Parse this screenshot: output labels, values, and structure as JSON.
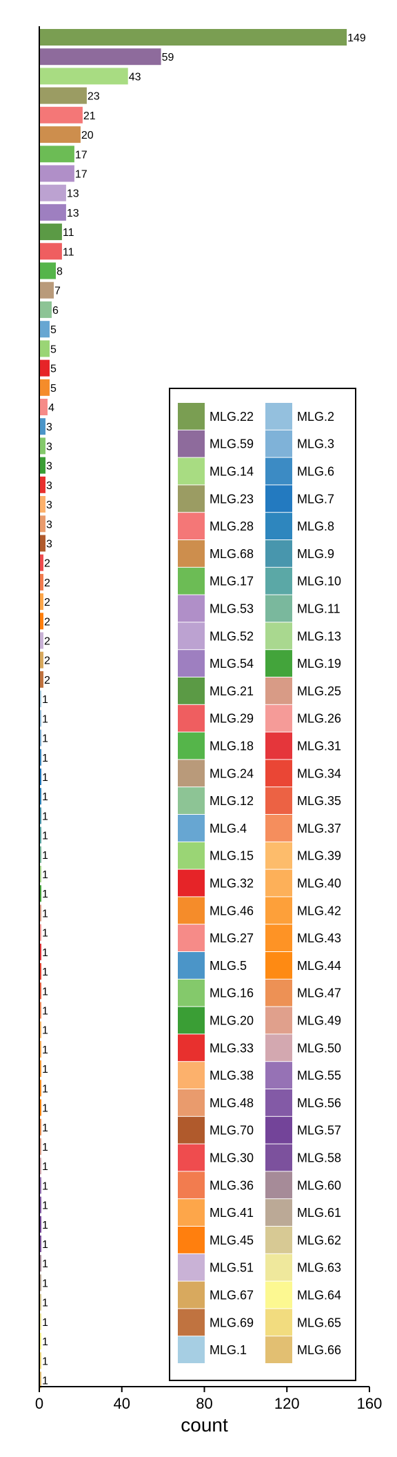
{
  "chart_data": {
    "type": "bar",
    "orientation": "horizontal",
    "title": "",
    "xlabel": "count",
    "ylabel": "",
    "xlim": [
      0,
      160
    ],
    "xticks": [
      0,
      40,
      80,
      120,
      160
    ],
    "grid": false,
    "legend_placement": "bottom-right",
    "categories": [
      "MLG.22",
      "MLG.59",
      "MLG.14",
      "MLG.23",
      "MLG.28",
      "MLG.68",
      "MLG.17",
      "MLG.53",
      "MLG.52",
      "MLG.54",
      "MLG.21",
      "MLG.29",
      "MLG.18",
      "MLG.24",
      "MLG.12",
      "MLG.4",
      "MLG.15",
      "MLG.32",
      "MLG.46",
      "MLG.27",
      "MLG.5",
      "MLG.16",
      "MLG.20",
      "MLG.33",
      "MLG.38",
      "MLG.48",
      "MLG.70",
      "MLG.30",
      "MLG.36",
      "MLG.41",
      "MLG.45",
      "MLG.51",
      "MLG.67",
      "MLG.69",
      "MLG.1",
      "MLG.2",
      "MLG.3",
      "MLG.6",
      "MLG.7",
      "MLG.8",
      "MLG.9",
      "MLG.10",
      "MLG.11",
      "MLG.13",
      "MLG.19",
      "MLG.25",
      "MLG.26",
      "MLG.31",
      "MLG.34",
      "MLG.35",
      "MLG.37",
      "MLG.39",
      "MLG.40",
      "MLG.42",
      "MLG.43",
      "MLG.44",
      "MLG.47",
      "MLG.49",
      "MLG.50",
      "MLG.55",
      "MLG.56",
      "MLG.57",
      "MLG.58",
      "MLG.60",
      "MLG.61",
      "MLG.62",
      "MLG.63",
      "MLG.64",
      "MLG.65",
      "MLG.66"
    ],
    "values": [
      149,
      59,
      43,
      23,
      21,
      20,
      17,
      17,
      13,
      13,
      11,
      11,
      8,
      7,
      6,
      5,
      5,
      5,
      5,
      4,
      3,
      3,
      3,
      3,
      3,
      3,
      3,
      2,
      2,
      2,
      2,
      2,
      2,
      2,
      1,
      1,
      1,
      1,
      1,
      1,
      1,
      1,
      1,
      1,
      1,
      1,
      1,
      1,
      1,
      1,
      1,
      1,
      1,
      1,
      1,
      1,
      1,
      1,
      1,
      1,
      1,
      1,
      1,
      1,
      1,
      1,
      1,
      1,
      1,
      1
    ],
    "value_labels": [
      "149",
      "59",
      "43",
      "23",
      "21",
      "20",
      "17",
      "17",
      "13",
      "13",
      "11",
      "11",
      "8",
      "7",
      "6",
      "5",
      "5",
      "5",
      "5",
      "4",
      "3",
      "3",
      "3",
      "3",
      "3",
      "3",
      "3",
      "2",
      "2",
      "2",
      "2",
      "2",
      "2",
      "2",
      "1",
      "1",
      "1",
      "1",
      "1",
      "1",
      "1",
      "1",
      "1",
      "1",
      "1",
      "1",
      "1",
      "1",
      "1",
      "1",
      "1",
      "1",
      "1",
      "1",
      "1",
      "1",
      "1",
      "1",
      "1",
      "1",
      "1",
      "1",
      "1",
      "1",
      "1",
      "1",
      "1",
      "1",
      "1",
      "1"
    ],
    "colors": [
      "#7a9e52",
      "#8e6b9c",
      "#a8dc82",
      "#9b9c63",
      "#f47777",
      "#cd8e4d",
      "#6cbc55",
      "#b08fc8",
      "#bca2d1",
      "#9e7fc0",
      "#5b9a45",
      "#ef5e60",
      "#55b54a",
      "#b99a7a",
      "#8dc495",
      "#67a6d2",
      "#9ad575",
      "#e62428",
      "#f58c2a",
      "#f68b88",
      "#4b95c8",
      "#84c96b",
      "#3a9e35",
      "#e8302e",
      "#fcb16c",
      "#e99b6d",
      "#b05a2c",
      "#ef4c4e",
      "#f27c4f",
      "#fda64a",
      "#ff7f0e",
      "#c9b2d6",
      "#d8a95e",
      "#c07340",
      "#a6cee3",
      "#94c0de",
      "#7fb2d8",
      "#3c8bc4",
      "#237ac0",
      "#2e86be",
      "#4896ad",
      "#5ba8a6",
      "#7ab89d",
      "#a9d88f",
      "#43a43b",
      "#d89b86",
      "#f59b98",
      "#e5363b",
      "#ea4635",
      "#ec6244",
      "#f58e5d",
      "#fdbc6b",
      "#fdb059",
      "#fda03a",
      "#fe9325",
      "#fe8a13",
      "#ed9155",
      "#e0a08c",
      "#d3a8b0",
      "#9672b5",
      "#835aa6",
      "#734499",
      "#7c519d",
      "#a68b98",
      "#bba996",
      "#d7c994",
      "#efe89c",
      "#fcf891",
      "#f2dc7f",
      "#e2bf72"
    ]
  }
}
